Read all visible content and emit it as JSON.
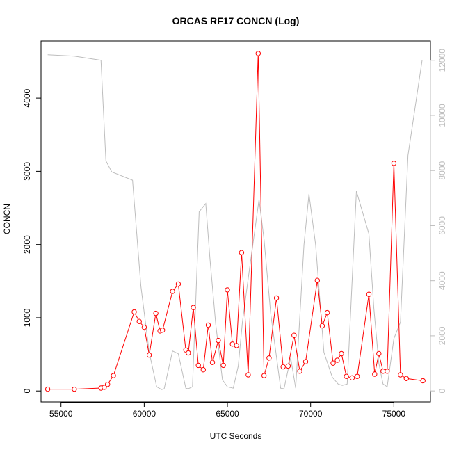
{
  "chart_data": {
    "type": "line",
    "title": "ORCAS RF17 CONCN (Log)",
    "xlabel": "UTC Seconds",
    "ylabel": "CONCN",
    "y2label": "",
    "xlim": [
      53800,
      77200
    ],
    "ylim": [
      -150,
      4780
    ],
    "y2lim": [
      -400,
      12700
    ],
    "xticks": [
      55000,
      60000,
      65000,
      70000,
      75000
    ],
    "xtick_labels": [
      "55000",
      "60000",
      "65000",
      "70000",
      "75000"
    ],
    "yticks": [
      0,
      1000,
      2000,
      3000,
      4000
    ],
    "ytick_labels": [
      "0",
      "1000",
      "2000",
      "3000",
      "4000"
    ],
    "y2ticks": [
      0,
      2000,
      4000,
      6000,
      8000,
      10000,
      12000
    ],
    "y2tick_labels": [
      "0",
      "2000",
      "4000",
      "6000",
      "8000",
      "10000",
      "12000"
    ],
    "grid": false,
    "series": [
      {
        "axis": "left",
        "color": "#ff0000",
        "marker": "open-circle",
        "x": [
          54200,
          55800,
          57400,
          57600,
          57800,
          58150,
          59400,
          59700,
          60000,
          60300,
          60700,
          60950,
          61100,
          61700,
          62050,
          62500,
          62650,
          62950,
          63250,
          63550,
          63850,
          64100,
          64450,
          64750,
          65000,
          65300,
          65550,
          65850,
          66250,
          66850,
          67200,
          67500,
          67950,
          68350,
          68650,
          69000,
          69350,
          69700,
          70400,
          70700,
          71000,
          71350,
          71600,
          71850,
          72150,
          72500,
          72800,
          73500,
          73850,
          74100,
          74350,
          74600,
          75000,
          75400,
          75750,
          76750
        ],
        "y": [
          25,
          25,
          40,
          50,
          90,
          210,
          1080,
          950,
          870,
          490,
          1060,
          820,
          830,
          1360,
          1460,
          560,
          520,
          1140,
          350,
          290,
          900,
          390,
          690,
          350,
          1380,
          640,
          620,
          1890,
          220,
          4610,
          210,
          450,
          1270,
          330,
          340,
          760,
          270,
          400,
          1510,
          890,
          1070,
          380,
          420,
          510,
          200,
          180,
          200,
          1320,
          230,
          510,
          270,
          270,
          3110,
          220,
          170,
          140
        ]
      },
      {
        "axis": "right",
        "color": "#bdbdbd",
        "marker": "none",
        "x": [
          54200,
          55800,
          57400,
          57700,
          58050,
          59300,
          59800,
          60300,
          60750,
          61050,
          61200,
          61700,
          62050,
          62500,
          62650,
          62900,
          63300,
          63700,
          63950,
          64300,
          64700,
          65000,
          65350,
          65650,
          65900,
          66300,
          66900,
          67200,
          67600,
          68200,
          68400,
          68800,
          69100,
          69600,
          69900,
          70300,
          70800,
          71300,
          71650,
          71900,
          72200,
          72750,
          73500,
          73800,
          74100,
          74350,
          74600,
          75000,
          75400,
          75850,
          76700
        ],
        "y": [
          12200,
          12150,
          12000,
          8350,
          7950,
          7650,
          3800,
          1400,
          150,
          50,
          80,
          1450,
          1350,
          100,
          80,
          150,
          6500,
          6800,
          4800,
          2400,
          400,
          150,
          100,
          900,
          2500,
          4300,
          6950,
          5500,
          2800,
          100,
          80,
          1200,
          100,
          5300,
          7150,
          5300,
          1400,
          500,
          250,
          200,
          250,
          7250,
          5700,
          3000,
          1000,
          250,
          150,
          1900,
          2500,
          8550,
          12000
        ]
      }
    ]
  }
}
